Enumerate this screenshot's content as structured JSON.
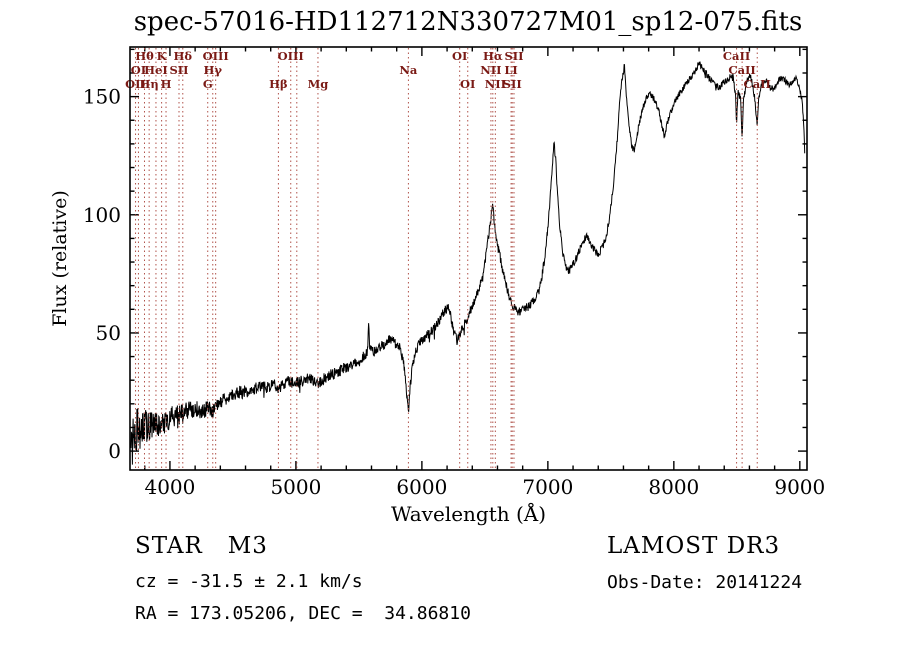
{
  "footer": {
    "object_class": "STAR   M3",
    "survey": "LAMOST DR3",
    "cz": "cz = -31.5 ± 2.1 km/s",
    "obs_date": "Obs-Date: 20141224",
    "radec": "RA = 173.05206, DEC =  34.86810"
  },
  "chart_data": {
    "type": "line",
    "title": "spec-57016-HD112712N330727M01_sp12-075.fits",
    "xlabel": "Wavelength (Å)",
    "ylabel": "Flux (relative)",
    "xlim": [
      3683,
      9057
    ],
    "ylim": [
      -8,
      171
    ],
    "xticks": [
      4000,
      5000,
      6000,
      7000,
      8000,
      9000
    ],
    "yticks": [
      0,
      50,
      100,
      150
    ],
    "x_minor_step": 200,
    "y_minor_step": 10,
    "grid": false,
    "legend": "none",
    "colors": {
      "line_marker": "#b0524a",
      "line_label": "#7a1a15",
      "frame": "#000000"
    },
    "series": [
      {
        "name": "LAMOST spectrum flux vs wavelength (relative units)",
        "color": "#000000",
        "sample_step": 3,
        "anchors": [
          [
            3690,
            -4
          ],
          [
            3696,
            14
          ],
          [
            3702,
            2
          ],
          [
            3709,
            16
          ],
          [
            3716,
            5
          ],
          [
            3724,
            12
          ],
          [
            3732,
            6
          ],
          [
            3743,
            13
          ],
          [
            3757,
            7
          ],
          [
            3772,
            12
          ],
          [
            3788,
            8
          ],
          [
            3804,
            13
          ],
          [
            3824,
            9
          ],
          [
            3844,
            12
          ],
          [
            3864,
            10
          ],
          [
            3889,
            12
          ],
          [
            3914,
            10
          ],
          [
            3939,
            13
          ],
          [
            3969,
            12
          ],
          [
            4000,
            14
          ],
          [
            4040,
            15
          ],
          [
            4080,
            15
          ],
          [
            4110,
            16
          ],
          [
            4150,
            17
          ],
          [
            4200,
            18
          ],
          [
            4250,
            17
          ],
          [
            4300,
            18
          ],
          [
            4340,
            17
          ],
          [
            4380,
            20
          ],
          [
            4430,
            22
          ],
          [
            4480,
            23
          ],
          [
            4540,
            25
          ],
          [
            4600,
            25
          ],
          [
            4660,
            26
          ],
          [
            4720,
            27
          ],
          [
            4780,
            27
          ],
          [
            4830,
            28
          ],
          [
            4861,
            25
          ],
          [
            4890,
            28
          ],
          [
            4930,
            29
          ],
          [
            4970,
            30
          ],
          [
            5007,
            29
          ],
          [
            5050,
            30
          ],
          [
            5100,
            31
          ],
          [
            5140,
            30
          ],
          [
            5175,
            28
          ],
          [
            5210,
            30
          ],
          [
            5260,
            32
          ],
          [
            5320,
            33
          ],
          [
            5380,
            35
          ],
          [
            5440,
            36
          ],
          [
            5500,
            38
          ],
          [
            5540,
            40
          ],
          [
            5570,
            43
          ],
          [
            5577,
            56
          ],
          [
            5584,
            43
          ],
          [
            5620,
            42
          ],
          [
            5660,
            44
          ],
          [
            5700,
            45
          ],
          [
            5740,
            47
          ],
          [
            5780,
            46
          ],
          [
            5820,
            44
          ],
          [
            5855,
            38
          ],
          [
            5880,
            24
          ],
          [
            5893,
            16
          ],
          [
            5905,
            26
          ],
          [
            5925,
            36
          ],
          [
            5950,
            42
          ],
          [
            5985,
            46
          ],
          [
            6020,
            48
          ],
          [
            6060,
            50
          ],
          [
            6100,
            52
          ],
          [
            6140,
            55
          ],
          [
            6175,
            59
          ],
          [
            6205,
            61
          ],
          [
            6230,
            57
          ],
          [
            6255,
            50
          ],
          [
            6280,
            47
          ],
          [
            6305,
            50
          ],
          [
            6330,
            53
          ],
          [
            6360,
            56
          ],
          [
            6395,
            61
          ],
          [
            6430,
            65
          ],
          [
            6460,
            70
          ],
          [
            6490,
            77
          ],
          [
            6515,
            85
          ],
          [
            6535,
            93
          ],
          [
            6550,
            100
          ],
          [
            6560,
            105
          ],
          [
            6572,
            98
          ],
          [
            6590,
            91
          ],
          [
            6615,
            84
          ],
          [
            6640,
            77
          ],
          [
            6665,
            71
          ],
          [
            6690,
            66
          ],
          [
            6715,
            62
          ],
          [
            6740,
            60
          ],
          [
            6770,
            59
          ],
          [
            6800,
            60
          ],
          [
            6830,
            61
          ],
          [
            6860,
            62
          ],
          [
            6890,
            64
          ],
          [
            6920,
            67
          ],
          [
            6950,
            73
          ],
          [
            6975,
            82
          ],
          [
            7000,
            95
          ],
          [
            7025,
            112
          ],
          [
            7048,
            130
          ],
          [
            7060,
            125
          ],
          [
            7075,
            110
          ],
          [
            7095,
            95
          ],
          [
            7115,
            85
          ],
          [
            7140,
            78
          ],
          [
            7165,
            76
          ],
          [
            7190,
            78
          ],
          [
            7220,
            81
          ],
          [
            7250,
            85
          ],
          [
            7280,
            89
          ],
          [
            7310,
            91
          ],
          [
            7340,
            88
          ],
          [
            7370,
            85
          ],
          [
            7400,
            83
          ],
          [
            7430,
            86
          ],
          [
            7460,
            90
          ],
          [
            7490,
            99
          ],
          [
            7520,
            112
          ],
          [
            7545,
            128
          ],
          [
            7570,
            148
          ],
          [
            7590,
            158
          ],
          [
            7608,
            163
          ],
          [
            7625,
            150
          ],
          [
            7645,
            138
          ],
          [
            7665,
            129
          ],
          [
            7685,
            127
          ],
          [
            7705,
            133
          ],
          [
            7730,
            140
          ],
          [
            7760,
            146
          ],
          [
            7790,
            150
          ],
          [
            7820,
            151
          ],
          [
            7850,
            148
          ],
          [
            7880,
            144
          ],
          [
            7905,
            138
          ],
          [
            7925,
            133
          ],
          [
            7945,
            138
          ],
          [
            7970,
            143
          ],
          [
            8000,
            147
          ],
          [
            8040,
            151
          ],
          [
            8080,
            154
          ],
          [
            8120,
            157
          ],
          [
            8160,
            160
          ],
          [
            8200,
            164
          ],
          [
            8240,
            161
          ],
          [
            8280,
            158
          ],
          [
            8320,
            155
          ],
          [
            8360,
            154
          ],
          [
            8400,
            156
          ],
          [
            8440,
            158
          ],
          [
            8470,
            159
          ],
          [
            8490,
            150
          ],
          [
            8498,
            138
          ],
          [
            8508,
            152
          ],
          [
            8530,
            150
          ],
          [
            8542,
            132
          ],
          [
            8552,
            148
          ],
          [
            8580,
            157
          ],
          [
            8610,
            159
          ],
          [
            8640,
            150
          ],
          [
            8662,
            138
          ],
          [
            8675,
            150
          ],
          [
            8700,
            156
          ],
          [
            8730,
            157
          ],
          [
            8760,
            154
          ],
          [
            8790,
            153
          ],
          [
            8820,
            156
          ],
          [
            8850,
            158
          ],
          [
            8880,
            157
          ],
          [
            8910,
            155
          ],
          [
            8940,
            156
          ],
          [
            8965,
            158
          ],
          [
            8985,
            156
          ],
          [
            9005,
            152
          ],
          [
            9020,
            148
          ],
          [
            9032,
            136
          ],
          [
            9040,
            124
          ]
        ],
        "noise_amplitude": [
          [
            3690,
            9
          ],
          [
            3800,
            7
          ],
          [
            3950,
            5
          ],
          [
            4150,
            4
          ],
          [
            4400,
            3
          ],
          [
            4800,
            2.6
          ],
          [
            5300,
            2.4
          ],
          [
            5800,
            2.2
          ],
          [
            6300,
            2.0
          ],
          [
            6800,
            1.8
          ],
          [
            7400,
            1.6
          ],
          [
            8000,
            1.4
          ],
          [
            8600,
            1.3
          ],
          [
            9040,
            1.2
          ]
        ]
      }
    ],
    "spectral_lines": [
      {
        "wavelength": 3727,
        "label": "OII",
        "row": 2
      },
      {
        "wavelength": 3750,
        "label": "OI",
        "row": 1
      },
      {
        "wavelength": 3798,
        "label": "Hθ",
        "row": 0
      },
      {
        "wavelength": 3835,
        "label": "Hη",
        "row": 2
      },
      {
        "wavelength": 3889,
        "label": "HeI",
        "row": 1
      },
      {
        "wavelength": 3934,
        "label": "K",
        "row": 0
      },
      {
        "wavelength": 3969,
        "label": "H",
        "row": 2
      },
      {
        "wavelength": 4072,
        "label": "SII",
        "row": 1
      },
      {
        "wavelength": 4102,
        "label": "Hδ",
        "row": 0
      },
      {
        "wavelength": 4300,
        "label": "G",
        "row": 2
      },
      {
        "wavelength": 4340,
        "label": "Hγ",
        "row": 1
      },
      {
        "wavelength": 4363,
        "label": "OIII",
        "row": 0
      },
      {
        "wavelength": 4861,
        "label": "Hβ",
        "row": 2
      },
      {
        "wavelength": 4959,
        "label": "OIII",
        "row": 0
      },
      {
        "wavelength": 5007,
        "label": "",
        "row": 0
      },
      {
        "wavelength": 5175,
        "label": "Mg",
        "row": 2
      },
      {
        "wavelength": 5893,
        "label": "Na",
        "row": 1
      },
      {
        "wavelength": 6300,
        "label": "OI",
        "row": 0
      },
      {
        "wavelength": 6364,
        "label": "OI",
        "row": 2
      },
      {
        "wavelength": 6548,
        "label": "NII",
        "row": 1
      },
      {
        "wavelength": 6563,
        "label": "Hα",
        "row": 0
      },
      {
        "wavelength": 6583,
        "label": "NII",
        "row": 2
      },
      {
        "wavelength": 6708,
        "label": "LI",
        "row": 1
      },
      {
        "wavelength": 6717,
        "label": "SII",
        "row": 2
      },
      {
        "wavelength": 6731,
        "label": "SII",
        "row": 0
      },
      {
        "wavelength": 8498,
        "label": "CaII",
        "row": 0
      },
      {
        "wavelength": 8542,
        "label": "CaII",
        "row": 1
      },
      {
        "wavelength": 8662,
        "label": "CaII",
        "row": 2
      }
    ]
  }
}
